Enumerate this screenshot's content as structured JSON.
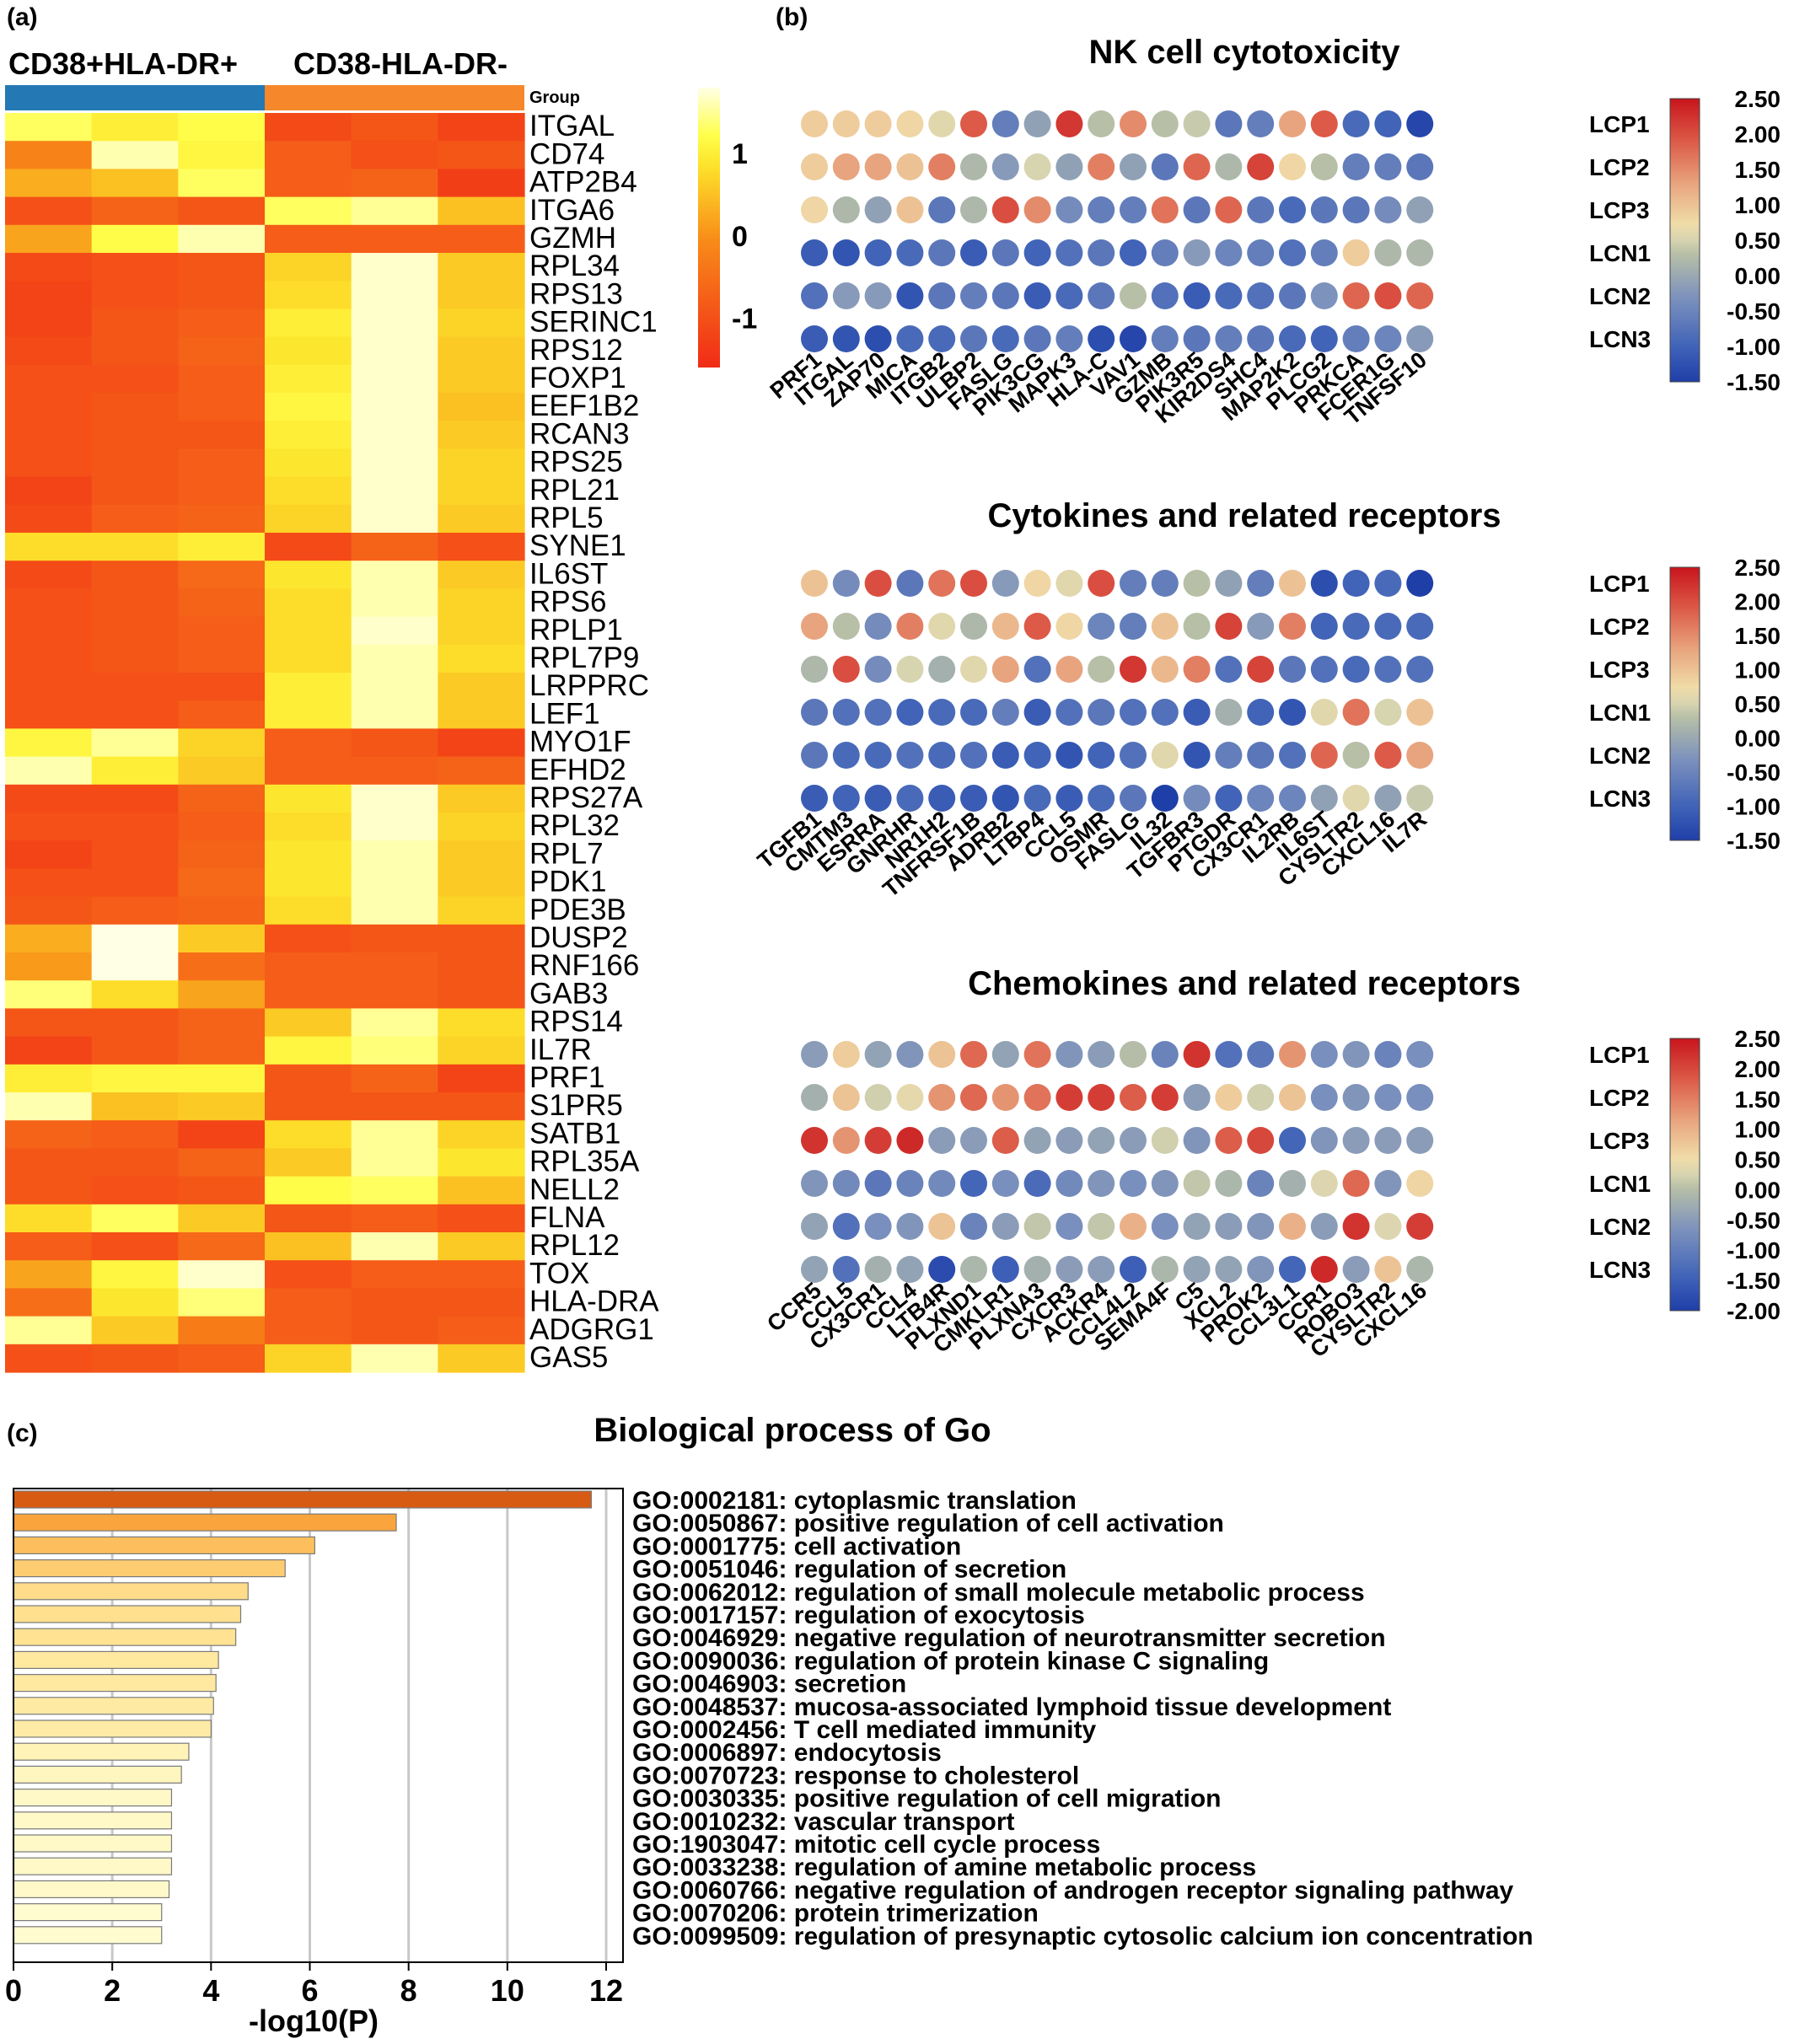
{
  "panels": {
    "a": "(a)",
    "b": "(b)",
    "c": "(c)"
  },
  "heatmap": {
    "groups": [
      "CD38+HLA-DR+",
      "CD38-HLA-DR-"
    ],
    "group_label": "Group",
    "group_colors": [
      "#2479b4",
      "#f6882b"
    ],
    "genes": [
      "ITGAL",
      "CD74",
      "ATP2B4",
      "ITGA6",
      "GZMH",
      "RPL34",
      "RPS13",
      "SERINC1",
      "RPS12",
      "FOXP1",
      "EEF1B2",
      "RCAN3",
      "RPS25",
      "RPL21",
      "RPL5",
      "SYNE1",
      "IL6ST",
      "RPS6",
      "RPLP1",
      "RPL7P9",
      "LRPPRC",
      "LEF1",
      "MYO1F",
      "EFHD2",
      "RPS27A",
      "RPL32",
      "RPL7",
      "PDK1",
      "PDE3B",
      "DUSP2",
      "RNF166",
      "GAB3",
      "RPS14",
      "IL7R",
      "PRF1",
      "S1PR5",
      "SATB1",
      "RPL35A",
      "NELL2",
      "FLNA",
      "RPL12",
      "TOX",
      "HLA-DRA",
      "ADGRG1",
      "GAS5"
    ],
    "values": [
      [
        1.3,
        1.0,
        1.2,
        -1.1,
        -0.9,
        -1.2
      ],
      [
        -0.2,
        1.6,
        1.1,
        -0.8,
        -1.0,
        -0.9
      ],
      [
        0.3,
        0.5,
        1.3,
        -0.8,
        -0.7,
        -1.3
      ],
      [
        -1.0,
        -0.7,
        -0.9,
        1.3,
        1.5,
        0.5
      ],
      [
        0.2,
        1.2,
        1.6,
        -0.8,
        -0.8,
        -0.8
      ],
      [
        -1.1,
        -1.0,
        -0.9,
        0.7,
        1.7,
        0.6
      ],
      [
        -1.2,
        -1.0,
        -0.9,
        0.8,
        1.7,
        0.6
      ],
      [
        -1.2,
        -0.9,
        -0.8,
        1.0,
        1.7,
        0.7
      ],
      [
        -1.1,
        -0.9,
        -0.7,
        0.9,
        1.7,
        0.6
      ],
      [
        -1.0,
        -1.0,
        -0.8,
        1.0,
        1.7,
        0.6
      ],
      [
        -1.0,
        -0.9,
        -0.8,
        1.1,
        1.7,
        0.5
      ],
      [
        -1.0,
        -0.9,
        -0.9,
        1.0,
        1.7,
        0.6
      ],
      [
        -1.0,
        -0.9,
        -0.8,
        0.9,
        1.7,
        0.7
      ],
      [
        -1.2,
        -0.9,
        -0.8,
        0.8,
        1.7,
        0.7
      ],
      [
        -1.1,
        -0.8,
        -0.7,
        0.7,
        1.7,
        0.6
      ],
      [
        0.8,
        0.8,
        1.0,
        -1.1,
        -0.7,
        -1.0
      ],
      [
        -1.1,
        -0.9,
        -0.6,
        0.9,
        1.6,
        0.6
      ],
      [
        -1.0,
        -0.9,
        -0.7,
        0.8,
        1.6,
        0.7
      ],
      [
        -1.0,
        -0.9,
        -0.8,
        0.8,
        1.7,
        0.7
      ],
      [
        -1.0,
        -0.9,
        -0.8,
        0.8,
        1.6,
        0.8
      ],
      [
        -1.0,
        -1.0,
        -1.0,
        1.0,
        1.6,
        0.6
      ],
      [
        -1.0,
        -1.0,
        -0.8,
        1.0,
        1.6,
        0.6
      ],
      [
        1.1,
        1.5,
        0.7,
        -0.8,
        -0.9,
        -1.2
      ],
      [
        1.6,
        1.0,
        0.6,
        -0.8,
        -0.8,
        -0.7
      ],
      [
        -1.1,
        -1.1,
        -0.7,
        0.9,
        1.7,
        0.6
      ],
      [
        -1.0,
        -1.0,
        -0.8,
        0.8,
        1.7,
        0.7
      ],
      [
        -1.2,
        -1.0,
        -0.7,
        0.9,
        1.6,
        0.6
      ],
      [
        -1.0,
        -1.0,
        -0.6,
        0.9,
        1.6,
        0.6
      ],
      [
        -0.9,
        -0.8,
        -0.7,
        0.8,
        1.6,
        0.7
      ],
      [
        0.3,
        1.8,
        0.6,
        -1.0,
        -0.9,
        -0.9
      ],
      [
        0.1,
        1.8,
        -0.5,
        -0.8,
        -0.8,
        -0.9
      ],
      [
        1.4,
        0.8,
        0.2,
        -0.8,
        -0.8,
        -0.9
      ],
      [
        -0.9,
        -0.9,
        -0.7,
        0.6,
        1.5,
        0.8
      ],
      [
        -1.2,
        -0.9,
        -0.7,
        1.1,
        1.4,
        0.7
      ],
      [
        1.0,
        1.1,
        1.1,
        -0.9,
        -0.7,
        -1.2
      ],
      [
        1.6,
        0.5,
        0.6,
        -0.9,
        -0.9,
        -0.9
      ],
      [
        -0.7,
        -0.8,
        -1.2,
        0.8,
        1.5,
        0.7
      ],
      [
        -0.9,
        -0.9,
        -0.7,
        0.6,
        1.5,
        0.9
      ],
      [
        -0.9,
        -1.0,
        -0.9,
        1.2,
        1.3,
        0.5
      ],
      [
        0.8,
        1.3,
        0.6,
        -0.9,
        -0.8,
        -1.0
      ],
      [
        -0.8,
        -1.0,
        -0.6,
        0.5,
        1.6,
        0.6
      ],
      [
        0.2,
        1.1,
        1.7,
        -1.0,
        -0.8,
        -0.8
      ],
      [
        -0.5,
        0.9,
        1.4,
        -0.8,
        -0.9,
        -0.9
      ],
      [
        1.5,
        0.6,
        -0.3,
        -0.8,
        -0.9,
        -0.8
      ],
      [
        -1.0,
        -0.9,
        -0.8,
        0.7,
        1.6,
        0.6
      ]
    ],
    "colorbar": {
      "ticks": [
        1,
        0,
        -1
      ],
      "range": [
        -1.6,
        1.8
      ],
      "colors": [
        "#f12b17",
        "#f8c217",
        "#ffff3b",
        "#ffffe6"
      ]
    }
  },
  "dot_rows": [
    "LCP1",
    "LCP2",
    "LCP3",
    "LCN1",
    "LCN2",
    "LCN3"
  ],
  "dotplots": [
    {
      "title": "NK cell cytotoxicity",
      "genes": [
        "PRF1",
        "ITGAL",
        "ZAP70",
        "MICA",
        "ITGB2",
        "ULBP2",
        "FASLG",
        "PIK3CG",
        "MAPK3",
        "HLA-C",
        "VAV1",
        "GZMB",
        "PIK3R5",
        "KIR2DS4",
        "SHC4",
        "MAP2K2",
        "PLCG2",
        "PRKCA",
        "FCER1G",
        "TNFSF10"
      ],
      "values": [
        [
          0.9,
          0.9,
          0.9,
          0.8,
          0.6,
          1.9,
          -0.6,
          -0.1,
          2.2,
          0.3,
          1.5,
          0.3,
          0.4,
          -0.7,
          -0.6,
          1.3,
          1.9,
          -0.9,
          -1.0,
          -1.4
        ],
        [
          0.9,
          1.3,
          1.3,
          1.0,
          1.6,
          0.2,
          -0.2,
          0.5,
          -0.1,
          1.6,
          -0.1,
          -0.7,
          1.8,
          0.2,
          2.1,
          0.8,
          0.3,
          -0.6,
          -0.6,
          -0.7
        ],
        [
          0.8,
          0.2,
          -0.1,
          1.0,
          -0.7,
          0.2,
          2.0,
          1.5,
          -0.4,
          -0.6,
          -0.6,
          1.7,
          -0.7,
          1.8,
          -0.7,
          -0.9,
          -0.7,
          -0.7,
          -0.4,
          -0.1
        ],
        [
          -1.1,
          -1.2,
          -1.0,
          -0.9,
          -0.7,
          -1.1,
          -0.7,
          -1.0,
          -0.8,
          -0.7,
          -1.0,
          -0.6,
          -0.2,
          -0.5,
          -0.6,
          -0.8,
          -0.6,
          0.9,
          0.2,
          0.2
        ],
        [
          -0.8,
          -0.2,
          -0.2,
          -1.2,
          -0.7,
          -0.6,
          -0.7,
          -1.1,
          -0.9,
          -0.7,
          0.3,
          -0.8,
          -1.1,
          -0.9,
          -0.8,
          -0.7,
          -0.3,
          1.8,
          2.0,
          1.8
        ],
        [
          -1.1,
          -1.2,
          -1.3,
          -0.9,
          -0.9,
          -0.7,
          -0.9,
          -0.7,
          -0.6,
          -1.3,
          -1.4,
          -0.6,
          -0.7,
          -0.6,
          -0.7,
          -0.9,
          -1.0,
          -0.6,
          -0.5,
          -0.2
        ]
      ],
      "colorbar": {
        "ticks": [
          "2.50",
          "2.00",
          "1.50",
          "1.00",
          "0.50",
          "0.00",
          "-0.50",
          "-1.00",
          "-1.50"
        ],
        "range": [
          -1.5,
          2.5
        ]
      }
    },
    {
      "title": "Cytokines and related receptors",
      "genes": [
        "TGFB1",
        "CMTM3",
        "ESRRA",
        "GNRHR",
        "NR1H2",
        "TNFRSF1B",
        "ADRB2",
        "LTBP4",
        "CCL5",
        "OSMR",
        "FASLG",
        "IL32",
        "TGFBR3",
        "PTGDR",
        "CX3CR1",
        "IL2RB",
        "IL6ST",
        "CYSLTR2",
        "CXCL16",
        "IL7R"
      ],
      "values": [
        [
          1.0,
          -0.4,
          2.0,
          -0.7,
          1.7,
          2.0,
          -0.2,
          0.8,
          0.6,
          2.0,
          -0.6,
          -0.6,
          0.3,
          -0.1,
          -0.6,
          1.0,
          -1.3,
          -1.0,
          -0.9,
          -1.5
        ],
        [
          1.3,
          0.3,
          -0.4,
          1.6,
          0.6,
          0.2,
          1.1,
          1.9,
          0.8,
          -0.5,
          -0.6,
          1.0,
          0.3,
          2.1,
          -0.2,
          1.6,
          -1.0,
          -0.9,
          -0.9,
          -0.9
        ],
        [
          0.2,
          2.0,
          -0.4,
          0.5,
          0.1,
          0.6,
          1.3,
          -0.8,
          1.3,
          0.3,
          2.2,
          1.1,
          1.6,
          -0.8,
          2.1,
          -0.7,
          -0.8,
          -0.9,
          -0.8,
          -0.8
        ],
        [
          -0.7,
          -0.8,
          -0.8,
          -1.0,
          -0.9,
          -0.9,
          -0.6,
          -1.1,
          -0.8,
          -0.7,
          -0.8,
          -0.8,
          -1.1,
          0.1,
          -1.0,
          -1.2,
          0.6,
          1.7,
          0.5,
          1.0
        ],
        [
          -0.7,
          -0.9,
          -0.9,
          -0.8,
          -0.9,
          -0.8,
          -1.1,
          -1.0,
          -1.2,
          -1.0,
          -0.8,
          0.6,
          -1.2,
          -0.6,
          -0.7,
          -0.8,
          1.8,
          0.3,
          1.9,
          1.3
        ],
        [
          -1.1,
          -1.0,
          -1.1,
          -0.9,
          -1.1,
          -1.1,
          -1.2,
          -0.9,
          -1.1,
          -0.9,
          -0.7,
          -1.6,
          -0.4,
          -1.0,
          -0.5,
          -0.5,
          -0.1,
          0.6,
          -0.1,
          0.4
        ]
      ],
      "colorbar": {
        "ticks": [
          "2.50",
          "2.00",
          "1.50",
          "1.00",
          "0.50",
          "0.00",
          "-0.50",
          "-1.00",
          "-1.50"
        ],
        "range": [
          -1.5,
          2.5
        ]
      }
    },
    {
      "title": "Chemokines and related receptors",
      "genes": [
        "CCR5",
        "CCL5",
        "CX3CR1",
        "CCL4",
        "LTB4R",
        "PLXND1",
        "CMKLR1",
        "PLXNA3",
        "CXCR3",
        "ACKR4",
        "CCL4L2",
        "SEMA4F",
        "C5",
        "XCL2",
        "PROK2",
        "CCL3L1",
        "CCR1",
        "ROBO3",
        "CYSLTR2",
        "CXCL16"
      ],
      "values": [
        [
          -0.5,
          0.7,
          -0.4,
          -0.6,
          0.8,
          1.7,
          -0.4,
          1.6,
          -0.6,
          -0.5,
          0.0,
          -0.9,
          2.2,
          -1.2,
          -1.1,
          1.3,
          -0.7,
          -0.6,
          -0.9,
          -0.7
        ],
        [
          -0.2,
          0.8,
          0.2,
          0.4,
          1.3,
          1.7,
          1.3,
          1.6,
          2.1,
          2.1,
          1.8,
          2.1,
          -0.5,
          0.7,
          0.2,
          0.8,
          -0.7,
          -0.6,
          -0.7,
          -0.7
        ],
        [
          2.2,
          1.3,
          2.1,
          2.3,
          -0.5,
          -0.5,
          1.8,
          -0.4,
          -0.5,
          -0.4,
          -0.5,
          0.2,
          -0.6,
          1.8,
          2.0,
          -1.4,
          -0.6,
          -0.5,
          -0.5,
          -0.5
        ],
        [
          -0.6,
          -0.8,
          -1.1,
          -0.9,
          -0.8,
          -1.4,
          -0.7,
          -1.3,
          -0.8,
          -0.6,
          -0.7,
          -0.6,
          0.1,
          -0.1,
          -0.9,
          -0.2,
          0.3,
          1.7,
          -0.6,
          0.6
        ],
        [
          -0.4,
          -1.2,
          -0.7,
          -0.6,
          0.8,
          -0.9,
          -0.5,
          0.1,
          -0.7,
          0.1,
          1.0,
          -0.7,
          -0.4,
          -0.5,
          -0.6,
          1.0,
          -0.5,
          2.2,
          0.3,
          2.1
        ],
        [
          -0.4,
          -1.2,
          -0.2,
          -0.4,
          -1.8,
          -0.1,
          -1.5,
          -0.2,
          -0.5,
          -0.5,
          -1.5,
          -0.1,
          -0.4,
          -0.4,
          -0.6,
          -1.4,
          2.3,
          -0.5,
          0.8,
          -0.1
        ]
      ],
      "colorbar": {
        "ticks": [
          "2.50",
          "2.00",
          "1.50",
          "1.00",
          "0.50",
          "0.00",
          "-0.50",
          "-1.00",
          "-1.50",
          "-2.00"
        ],
        "range": [
          -2.0,
          2.5
        ]
      }
    }
  ],
  "chart_data": {
    "type": "bar",
    "orientation": "horizontal",
    "title": "Biological process of Go",
    "xlabel": "-log10(P)",
    "xlim": [
      0,
      12
    ],
    "xticks": [
      0,
      2,
      4,
      6,
      8,
      10,
      12
    ],
    "grid": true,
    "categories": [
      "GO:0002181: cytoplasmic translation",
      "GO:0050867: positive regulation of cell activation",
      "GO:0001775: cell activation",
      "GO:0051046: regulation of secretion",
      "GO:0062012: regulation of small molecule metabolic process",
      "GO:0017157: regulation of exocytosis",
      "GO:0046929: negative regulation of neurotransmitter secretion",
      "GO:0090036: regulation of protein kinase C signaling",
      "GO:0046903: secretion",
      "GO:0048537: mucosa-associated lymphoid tissue development",
      "GO:0002456: T cell mediated immunity",
      "GO:0006897: endocytosis",
      "GO:0070723: response to cholesterol",
      "GO:0030335: positive regulation of cell migration",
      "GO:0010232: vascular transport",
      "GO:1903047: mitotic cell cycle process",
      "GO:0033238: regulation of amine metabolic process",
      "GO:0060766: negative regulation of androgen receptor signaling pathway",
      "GO:0070206: protein trimerization",
      "GO:0099509: regulation of presynaptic cytosolic calcium ion concentration"
    ],
    "values": [
      11.7,
      7.75,
      6.1,
      5.5,
      4.75,
      4.6,
      4.5,
      4.15,
      4.1,
      4.05,
      4.0,
      3.55,
      3.4,
      3.2,
      3.2,
      3.2,
      3.2,
      3.15,
      3.0,
      3.0
    ]
  }
}
